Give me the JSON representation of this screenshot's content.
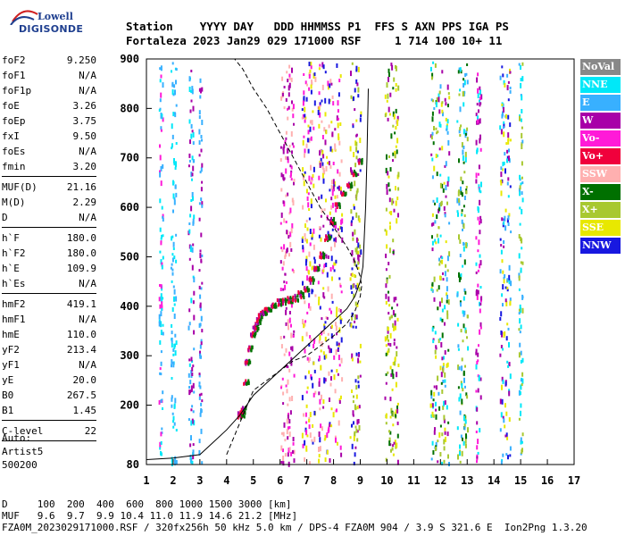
{
  "logo": {
    "line1": "Lowell",
    "line2": "DIGISONDE"
  },
  "header": {
    "row1": "Station    YYYY DAY   DDD HHMMSS P1  FFS S AXN PPS IGA PS",
    "row2": "Fortaleza 2023 Jan29 029 171000 RSF     1 714 100 10+ 11"
  },
  "params_group1": [
    {
      "k": "foF2",
      "v": "9.250"
    },
    {
      "k": "foF1",
      "v": "N/A"
    },
    {
      "k": "foF1p",
      "v": "N/A"
    },
    {
      "k": "foE",
      "v": "3.26"
    },
    {
      "k": "foEp",
      "v": "3.75"
    },
    {
      "k": "fxI",
      "v": "9.50"
    },
    {
      "k": "foEs",
      "v": "N/A"
    },
    {
      "k": "fmin",
      "v": "3.20"
    }
  ],
  "params_group2": [
    {
      "k": "MUF(D)",
      "v": "21.16"
    },
    {
      "k": "M(D)",
      "v": "2.29"
    },
    {
      "k": "D",
      "v": "N/A"
    }
  ],
  "params_group3": [
    {
      "k": "h`F",
      "v": "180.0"
    },
    {
      "k": "h`F2",
      "v": "180.0"
    },
    {
      "k": "h`E",
      "v": "109.9"
    },
    {
      "k": "h`Es",
      "v": "N/A"
    }
  ],
  "params_group4": [
    {
      "k": "hmF2",
      "v": "419.1"
    },
    {
      "k": "hmF1",
      "v": "N/A"
    },
    {
      "k": "hmE",
      "v": "110.0"
    },
    {
      "k": "yF2",
      "v": "213.4"
    },
    {
      "k": "yF1",
      "v": "N/A"
    },
    {
      "k": "yE",
      "v": "20.0"
    },
    {
      "k": "B0",
      "v": "267.5"
    },
    {
      "k": "B1",
      "v": "1.45"
    }
  ],
  "params_group5": [
    {
      "k": "C-level",
      "v": "22"
    }
  ],
  "auto": {
    "line1": "Auto:",
    "line2": "Artist5",
    "line3": "500200"
  },
  "bottom": {
    "row1": "D     100  200  400  600  800 1000 1500 3000 [km]",
    "row2": "MUF   9.6  9.7  9.9 10.4 11.0 11.9 14.6 21.2 [MHz]",
    "row3": "FZA0M_2023029171000.RSF / 320fx256h 50 kHz 5.0 km / DPS-4 FZA0M 904 / 3.9 S 321.6 E  Ion2Png 1.3.20"
  },
  "legend": [
    {
      "label": "NoVal",
      "color": "#888888"
    },
    {
      "label": "NNE",
      "color": "#00e8f8"
    },
    {
      "label": "E",
      "color": "#38b0ff"
    },
    {
      "label": "W",
      "color": "#a800a8"
    },
    {
      "label": "Vo-",
      "color": "#ff1ad8"
    },
    {
      "label": "Vo+",
      "color": "#f0003c"
    },
    {
      "label": "SSW",
      "color": "#ffb0b0"
    },
    {
      "label": "X-",
      "color": "#007000"
    },
    {
      "label": "X+",
      "color": "#a8c830"
    },
    {
      "label": "SSE",
      "color": "#e8e800"
    },
    {
      "label": "NNW",
      "color": "#1818e0"
    }
  ],
  "chart_data": {
    "type": "scatter",
    "xlim": [
      1,
      17
    ],
    "ylim": [
      80,
      900
    ],
    "xticks": [
      "1",
      "2",
      "3",
      "4",
      "5",
      "6",
      "7",
      "8",
      "9",
      "10",
      "11",
      "12",
      "13",
      "14",
      "15",
      "16",
      "17"
    ],
    "yticks": [
      "80",
      "200",
      "300",
      "400",
      "500",
      "600",
      "700",
      "800",
      "900"
    ],
    "trace_x": [
      4.45,
      4.5,
      4.55,
      4.65,
      4.7,
      4.8,
      4.9,
      5.0,
      5.1,
      5.2,
      5.35,
      5.5,
      5.7,
      5.9,
      6.1,
      6.3,
      6.5,
      6.7,
      6.9,
      7.1,
      7.3,
      7.5,
      7.7,
      7.9,
      8.1,
      8.3,
      8.5,
      8.7,
      8.9
    ],
    "trace_y": [
      182,
      186,
      195,
      250,
      290,
      320,
      345,
      360,
      372,
      385,
      393,
      400,
      405,
      410,
      413,
      416,
      420,
      427,
      438,
      455,
      478,
      505,
      540,
      575,
      605,
      628,
      650,
      672,
      695
    ],
    "true_height_x": [
      1.0,
      2.0,
      3.0,
      3.5,
      4.0,
      4.5,
      5.0,
      5.5,
      6.0,
      6.5,
      7.0,
      7.5,
      8.0,
      8.5,
      8.8,
      9.0,
      9.1,
      9.15,
      9.2,
      9.25,
      9.3
    ],
    "true_height_y": [
      90,
      93,
      100,
      125,
      150,
      180,
      220,
      245,
      270,
      295,
      320,
      345,
      370,
      395,
      420,
      450,
      480,
      540,
      600,
      700,
      840
    ],
    "profile_x": [
      4.0,
      5.0,
      6.0,
      6.5,
      7.0,
      7.5,
      8.0,
      8.5,
      8.8,
      9.0,
      9.05,
      9.0,
      8.8,
      8.5,
      8.0,
      7.5,
      7.0,
      6.5,
      6.0,
      5.5,
      5.0,
      4.6,
      4.3
    ],
    "profile_y": [
      100,
      230,
      270,
      290,
      300,
      320,
      340,
      365,
      390,
      420,
      440,
      460,
      490,
      520,
      560,
      600,
      650,
      700,
      750,
      800,
      840,
      880,
      900
    ]
  }
}
